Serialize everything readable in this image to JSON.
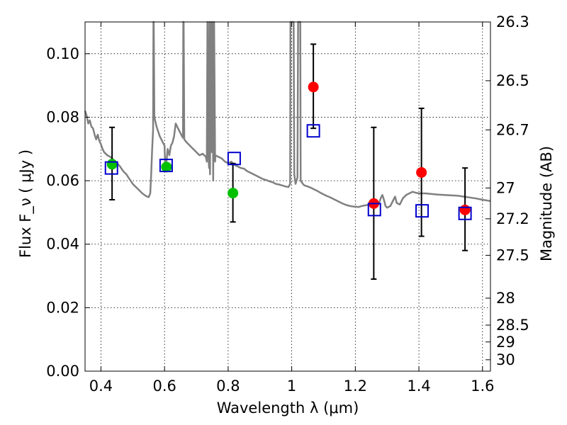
{
  "chart_data": {
    "type": "scatter",
    "xlabel": "Wavelength  λ (μm)",
    "ylabel": "Flux  F_ν  ( μJy )",
    "ylabel_right": "Magnitude (AB)",
    "xlim": [
      0.35,
      1.625
    ],
    "ylim": [
      0.0,
      0.11
    ],
    "x_ticks": [
      0.4,
      0.6,
      0.8,
      1.0,
      1.2,
      1.4,
      1.6
    ],
    "x_tick_labels": [
      "0.4",
      "0.6",
      "0.8",
      "1",
      "1.2",
      "1.4",
      "1.6"
    ],
    "y_ticks": [
      0.0,
      0.02,
      0.04,
      0.06,
      0.08,
      0.1
    ],
    "y_tick_labels": [
      "0.00",
      "0.02",
      "0.04",
      "0.06",
      "0.08",
      "0.10"
    ],
    "right_ticks": [
      {
        "label": "26.3",
        "flux": 0.11
      },
      {
        "label": "26.5",
        "flux": 0.0915
      },
      {
        "label": "26.7",
        "flux": 0.076
      },
      {
        "label": "27",
        "flux": 0.0577
      },
      {
        "label": "27.2",
        "flux": 0.048
      },
      {
        "label": "27.5",
        "flux": 0.0365
      },
      {
        "label": "28",
        "flux": 0.023
      },
      {
        "label": "28.5",
        "flux": 0.0145
      },
      {
        "label": "29",
        "flux": 0.0092
      },
      {
        "label": "30",
        "flux": 0.0036
      }
    ],
    "grid": true,
    "colors": {
      "template": "#808080",
      "green": "#00c000",
      "red": "#ff0000",
      "box": "#0000cc",
      "error": "#000000"
    },
    "template_spectrum": [
      [
        0.35,
        0.082
      ],
      [
        0.355,
        0.0805
      ],
      [
        0.36,
        0.078
      ],
      [
        0.365,
        0.079
      ],
      [
        0.37,
        0.077
      ],
      [
        0.375,
        0.0765
      ],
      [
        0.38,
        0.0745
      ],
      [
        0.385,
        0.073
      ],
      [
        0.39,
        0.0745
      ],
      [
        0.395,
        0.0725
      ],
      [
        0.4,
        0.0715
      ],
      [
        0.405,
        0.07
      ],
      [
        0.41,
        0.069
      ],
      [
        0.42,
        0.068
      ],
      [
        0.43,
        0.0675
      ],
      [
        0.44,
        0.0665
      ],
      [
        0.45,
        0.0655
      ],
      [
        0.46,
        0.0645
      ],
      [
        0.47,
        0.063
      ],
      [
        0.48,
        0.062
      ],
      [
        0.49,
        0.0605
      ],
      [
        0.5,
        0.059
      ],
      [
        0.51,
        0.058
      ],
      [
        0.52,
        0.057
      ],
      [
        0.53,
        0.056
      ],
      [
        0.54,
        0.0553
      ],
      [
        0.545,
        0.055
      ],
      [
        0.55,
        0.0548
      ],
      [
        0.555,
        0.056
      ],
      [
        0.558,
        0.062
      ],
      [
        0.561,
        0.07
      ],
      [
        0.564,
        0.076
      ],
      [
        0.565,
        0.11
      ],
      [
        0.566,
        0.11
      ],
      [
        0.568,
        0.08
      ],
      [
        0.575,
        0.077
      ],
      [
        0.585,
        0.074
      ],
      [
        0.595,
        0.072
      ],
      [
        0.6,
        0.071
      ],
      [
        0.602,
        0.064
      ],
      [
        0.605,
        0.065
      ],
      [
        0.61,
        0.07
      ],
      [
        0.615,
        0.068
      ],
      [
        0.62,
        0.071
      ],
      [
        0.625,
        0.072
      ],
      [
        0.63,
        0.074
      ],
      [
        0.635,
        0.078
      ],
      [
        0.64,
        0.077
      ],
      [
        0.645,
        0.076
      ],
      [
        0.65,
        0.075
      ],
      [
        0.655,
        0.074
      ],
      [
        0.658,
        0.0735
      ],
      [
        0.659,
        0.11
      ],
      [
        0.66,
        0.11
      ],
      [
        0.662,
        0.073
      ],
      [
        0.67,
        0.072
      ],
      [
        0.68,
        0.071
      ],
      [
        0.69,
        0.07
      ],
      [
        0.7,
        0.069
      ],
      [
        0.71,
        0.068
      ],
      [
        0.72,
        0.0685
      ],
      [
        0.73,
        0.0675
      ],
      [
        0.733,
        0.066
      ],
      [
        0.735,
        0.11
      ],
      [
        0.737,
        0.07
      ],
      [
        0.74,
        0.064
      ],
      [
        0.741,
        0.11
      ],
      [
        0.743,
        0.062
      ],
      [
        0.746,
        0.11
      ],
      [
        0.748,
        0.069
      ],
      [
        0.751,
        0.11
      ],
      [
        0.753,
        0.06
      ],
      [
        0.756,
        0.11
      ],
      [
        0.759,
        0.066
      ],
      [
        0.76,
        0.068
      ],
      [
        0.77,
        0.0675
      ],
      [
        0.78,
        0.067
      ],
      [
        0.79,
        0.066
      ],
      [
        0.8,
        0.0655
      ],
      [
        0.81,
        0.066
      ],
      [
        0.82,
        0.065
      ],
      [
        0.83,
        0.0645
      ],
      [
        0.84,
        0.064
      ],
      [
        0.85,
        0.0638
      ],
      [
        0.86,
        0.063
      ],
      [
        0.87,
        0.0625
      ],
      [
        0.88,
        0.062
      ],
      [
        0.89,
        0.0615
      ],
      [
        0.9,
        0.061
      ],
      [
        0.91,
        0.0605
      ],
      [
        0.92,
        0.0602
      ],
      [
        0.93,
        0.0598
      ],
      [
        0.94,
        0.0595
      ],
      [
        0.95,
        0.059
      ],
      [
        0.96,
        0.0588
      ],
      [
        0.97,
        0.0585
      ],
      [
        0.98,
        0.0582
      ],
      [
        0.99,
        0.058
      ],
      [
        0.995,
        0.059
      ],
      [
        0.996,
        0.11
      ],
      [
        1.006,
        0.11
      ],
      [
        1.008,
        0.062
      ],
      [
        1.012,
        0.059
      ],
      [
        1.015,
        0.06
      ],
      [
        1.018,
        0.061
      ],
      [
        1.02,
        0.11
      ],
      [
        1.025,
        0.11
      ],
      [
        1.027,
        0.11
      ],
      [
        1.028,
        0.06
      ],
      [
        1.035,
        0.059
      ],
      [
        1.04,
        0.0585
      ],
      [
        1.05,
        0.0582
      ],
      [
        1.06,
        0.0578
      ],
      [
        1.07,
        0.0573
      ],
      [
        1.08,
        0.0568
      ],
      [
        1.09,
        0.0562
      ],
      [
        1.1,
        0.0557
      ],
      [
        1.11,
        0.0552
      ],
      [
        1.12,
        0.0548
      ],
      [
        1.13,
        0.0543
      ],
      [
        1.14,
        0.0538
      ],
      [
        1.15,
        0.0533
      ],
      [
        1.16,
        0.0528
      ],
      [
        1.17,
        0.0524
      ],
      [
        1.18,
        0.0521
      ],
      [
        1.19,
        0.0519
      ],
      [
        1.2,
        0.0518
      ],
      [
        1.21,
        0.0517
      ],
      [
        1.22,
        0.052
      ],
      [
        1.23,
        0.0522
      ],
      [
        1.24,
        0.0524
      ],
      [
        1.25,
        0.0526
      ],
      [
        1.26,
        0.0528
      ],
      [
        1.265,
        0.0525
      ],
      [
        1.27,
        0.052
      ],
      [
        1.275,
        0.053
      ],
      [
        1.28,
        0.0545
      ],
      [
        1.285,
        0.0555
      ],
      [
        1.29,
        0.054
      ],
      [
        1.295,
        0.052
      ],
      [
        1.3,
        0.0515
      ],
      [
        1.31,
        0.052
      ],
      [
        1.32,
        0.054
      ],
      [
        1.325,
        0.055
      ],
      [
        1.33,
        0.053
      ],
      [
        1.34,
        0.0525
      ],
      [
        1.35,
        0.0545
      ],
      [
        1.36,
        0.0555
      ],
      [
        1.37,
        0.056
      ],
      [
        1.38,
        0.0565
      ],
      [
        1.39,
        0.0562
      ],
      [
        1.4,
        0.056
      ],
      [
        1.42,
        0.056
      ],
      [
        1.44,
        0.0558
      ],
      [
        1.46,
        0.0556
      ],
      [
        1.48,
        0.0555
      ],
      [
        1.5,
        0.0554
      ],
      [
        1.52,
        0.0553
      ],
      [
        1.54,
        0.055
      ],
      [
        1.56,
        0.0547
      ],
      [
        1.58,
        0.0544
      ],
      [
        1.6,
        0.054
      ],
      [
        1.625,
        0.0536
      ]
    ],
    "series": [
      {
        "marker": "filled-circle",
        "color": "green",
        "points": [
          {
            "x": 0.435,
            "y": 0.0652
          },
          {
            "x": 0.606,
            "y": 0.0643
          },
          {
            "x": 0.815,
            "y": 0.0561
          }
        ]
      },
      {
        "marker": "filled-circle",
        "color": "red",
        "points": [
          {
            "x": 1.068,
            "y": 0.0895
          },
          {
            "x": 1.258,
            "y": 0.0528
          },
          {
            "x": 1.408,
            "y": 0.0626
          },
          {
            "x": 1.545,
            "y": 0.0508
          }
        ]
      },
      {
        "marker": "open-square",
        "color": "box",
        "points": [
          {
            "x": 0.433,
            "y": 0.064
          },
          {
            "x": 0.605,
            "y": 0.0648
          },
          {
            "x": 0.819,
            "y": 0.067
          },
          {
            "x": 1.068,
            "y": 0.0757
          },
          {
            "x": 1.26,
            "y": 0.0509
          },
          {
            "x": 1.41,
            "y": 0.0505
          },
          {
            "x": 1.545,
            "y": 0.0497
          }
        ]
      }
    ],
    "error_bars": [
      {
        "x": 0.435,
        "low": 0.054,
        "high": 0.0768
      },
      {
        "x": 0.815,
        "low": 0.047,
        "high": 0.0654
      },
      {
        "x": 1.068,
        "low": 0.0765,
        "high": 0.103
      },
      {
        "x": 1.258,
        "low": 0.029,
        "high": 0.0768
      },
      {
        "x": 1.408,
        "low": 0.0425,
        "high": 0.0828
      },
      {
        "x": 1.545,
        "low": 0.038,
        "high": 0.064
      }
    ]
  }
}
